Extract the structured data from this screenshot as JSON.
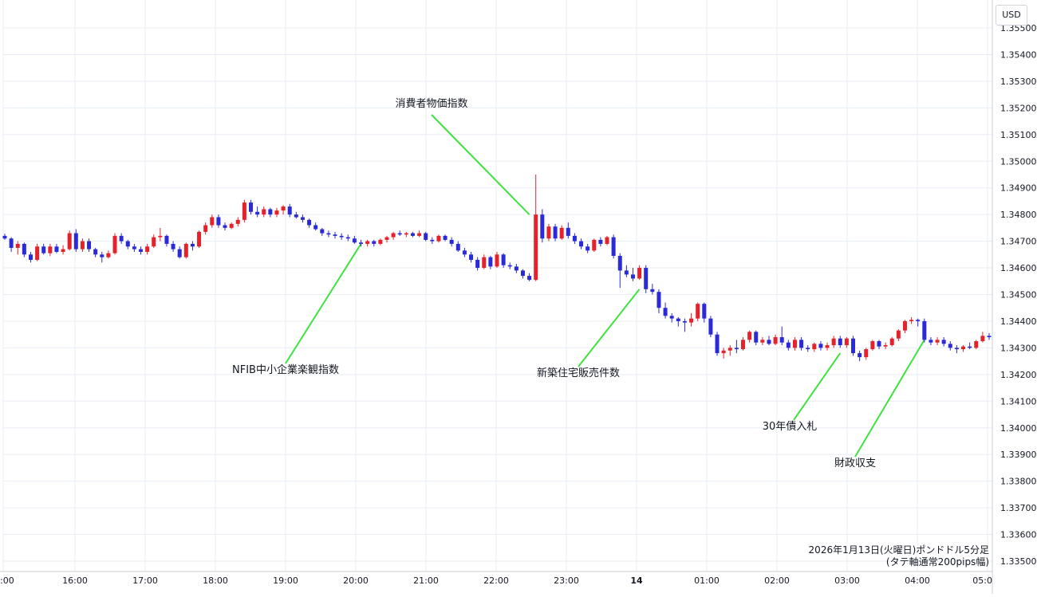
{
  "chart_data": {
    "type": "candlestick",
    "unit_label": "USD",
    "y_range": [
      1.335,
      1.3555
    ],
    "y_ticks": [
      "1.35500",
      "1.35400",
      "1.35300",
      "1.35200",
      "1.35100",
      "1.35000",
      "1.34900",
      "1.34800",
      "1.34700",
      "1.34600",
      "1.34500",
      "1.34400",
      "1.34300",
      "1.34200",
      "1.34100",
      "1.34000",
      "1.33900",
      "1.33800",
      "1.33700",
      "1.33600",
      "1.33500"
    ],
    "x_ticks": [
      ":00",
      "16:00",
      "17:00",
      "18:00",
      "19:00",
      "20:00",
      "21:00",
      "22:00",
      "23:00",
      "14",
      "01:00",
      "02:00",
      "03:00",
      "04:00",
      "05:0"
    ],
    "grid": true,
    "up_color": "#e5222b",
    "down_color": "#2a2ad8",
    "annotation_line_color": "#3fe23f",
    "caption_lines": [
      "2026年1月13日(火曜日)ポンドドル5分足",
      "(タテ軸通常200pips幅)"
    ],
    "annotations": [
      {
        "label": "消費者物価指数"
      },
      {
        "label": "NFIB中小企業楽観指数"
      },
      {
        "label": "新築住宅販売件数"
      },
      {
        "label": "30年債入札"
      },
      {
        "label": "財政収支"
      }
    ],
    "candles": [
      [
        1.3472,
        1.34728,
        1.34705,
        1.3471
      ],
      [
        1.3471,
        1.34715,
        1.3466,
        1.34675
      ],
      [
        1.34675,
        1.347,
        1.3465,
        1.3469
      ],
      [
        1.3469,
        1.34695,
        1.3464,
        1.3465
      ],
      [
        1.3465,
        1.3466,
        1.3462,
        1.3463
      ],
      [
        1.3463,
        1.3469,
        1.34625,
        1.3468
      ],
      [
        1.3468,
        1.3469,
        1.3465,
        1.34655
      ],
      [
        1.34655,
        1.3469,
        1.34645,
        1.3468
      ],
      [
        1.3468,
        1.3469,
        1.34655,
        1.3466
      ],
      [
        1.3466,
        1.34685,
        1.3465,
        1.3467
      ],
      [
        1.3467,
        1.3474,
        1.34665,
        1.3473
      ],
      [
        1.3473,
        1.34745,
        1.3466,
        1.3467
      ],
      [
        1.3467,
        1.3471,
        1.3466,
        1.347
      ],
      [
        1.347,
        1.3471,
        1.3466,
        1.3467
      ],
      [
        1.3467,
        1.34675,
        1.3464,
        1.3465
      ],
      [
        1.3465,
        1.3466,
        1.3462,
        1.3464
      ],
      [
        1.3464,
        1.34665,
        1.34635,
        1.34655
      ],
      [
        1.34655,
        1.3473,
        1.3465,
        1.3472
      ],
      [
        1.3472,
        1.3473,
        1.3469,
        1.347
      ],
      [
        1.347,
        1.34705,
        1.3467,
        1.3468
      ],
      [
        1.3468,
        1.3469,
        1.3466,
        1.3467
      ],
      [
        1.3467,
        1.3468,
        1.3465,
        1.3466
      ],
      [
        1.3466,
        1.3469,
        1.3465,
        1.3468
      ],
      [
        1.3468,
        1.34725,
        1.34675,
        1.34715
      ],
      [
        1.34715,
        1.3475,
        1.347,
        1.3472
      ],
      [
        1.3472,
        1.34725,
        1.3468,
        1.3469
      ],
      [
        1.3469,
        1.347,
        1.3466,
        1.3467
      ],
      [
        1.3467,
        1.3468,
        1.34635,
        1.3464
      ],
      [
        1.3464,
        1.34695,
        1.34635,
        1.3469
      ],
      [
        1.3469,
        1.347,
        1.34665,
        1.3468
      ],
      [
        1.3468,
        1.3474,
        1.34675,
        1.34735
      ],
      [
        1.34735,
        1.3477,
        1.34725,
        1.3476
      ],
      [
        1.3476,
        1.348,
        1.3475,
        1.3479
      ],
      [
        1.3479,
        1.348,
        1.3475,
        1.3476
      ],
      [
        1.3476,
        1.3477,
        1.3474,
        1.3475
      ],
      [
        1.3475,
        1.3477,
        1.34745,
        1.34765
      ],
      [
        1.34765,
        1.3479,
        1.34755,
        1.3478
      ],
      [
        1.3478,
        1.34855,
        1.3477,
        1.34845
      ],
      [
        1.34845,
        1.34855,
        1.348,
        1.3481
      ],
      [
        1.3481,
        1.3483,
        1.3479,
        1.348
      ],
      [
        1.348,
        1.3483,
        1.3479,
        1.3482
      ],
      [
        1.3482,
        1.34825,
        1.3479,
        1.348
      ],
      [
        1.348,
        1.34825,
        1.3479,
        1.34815
      ],
      [
        1.34815,
        1.34835,
        1.348,
        1.3483
      ],
      [
        1.3483,
        1.3484,
        1.3479,
        1.348
      ],
      [
        1.348,
        1.3481,
        1.34785,
        1.3479
      ],
      [
        1.3479,
        1.348,
        1.3477,
        1.3478
      ],
      [
        1.3478,
        1.34785,
        1.3475,
        1.3476
      ],
      [
        1.3476,
        1.3477,
        1.3474,
        1.34745
      ],
      [
        1.34745,
        1.3475,
        1.3472,
        1.3473
      ],
      [
        1.3473,
        1.3474,
        1.34715,
        1.34725
      ],
      [
        1.34725,
        1.34735,
        1.3471,
        1.3472
      ],
      [
        1.3472,
        1.3473,
        1.34705,
        1.34715
      ],
      [
        1.34715,
        1.34725,
        1.347,
        1.3471
      ],
      [
        1.3471,
        1.3472,
        1.3469,
        1.34695
      ],
      [
        1.34695,
        1.34705,
        1.3468,
        1.3469
      ],
      [
        1.3469,
        1.34705,
        1.3468,
        1.347
      ],
      [
        1.347,
        1.34705,
        1.3468,
        1.3469
      ],
      [
        1.3469,
        1.3471,
        1.34685,
        1.34705
      ],
      [
        1.34705,
        1.3472,
        1.34695,
        1.34715
      ],
      [
        1.34715,
        1.34735,
        1.34705,
        1.3473
      ],
      [
        1.3473,
        1.3474,
        1.3472,
        1.34725
      ],
      [
        1.34725,
        1.34735,
        1.34715,
        1.3473
      ],
      [
        1.3473,
        1.34735,
        1.34715,
        1.3472
      ],
      [
        1.3472,
        1.3474,
        1.34715,
        1.3473
      ],
      [
        1.3473,
        1.34735,
        1.347,
        1.34705
      ],
      [
        1.34705,
        1.34715,
        1.3469,
        1.347
      ],
      [
        1.347,
        1.34725,
        1.34695,
        1.3472
      ],
      [
        1.3472,
        1.34725,
        1.347,
        1.34705
      ],
      [
        1.34705,
        1.34715,
        1.3468,
        1.3469
      ],
      [
        1.3469,
        1.347,
        1.3466,
        1.34665
      ],
      [
        1.34665,
        1.34675,
        1.3464,
        1.3465
      ],
      [
        1.3465,
        1.3466,
        1.3462,
        1.3463
      ],
      [
        1.3463,
        1.3464,
        1.3459,
        1.346
      ],
      [
        1.346,
        1.3465,
        1.34595,
        1.3464
      ],
      [
        1.3464,
        1.34645,
        1.34595,
        1.34605
      ],
      [
        1.34605,
        1.3466,
        1.346,
        1.3465
      ],
      [
        1.3465,
        1.34655,
        1.346,
        1.3461
      ],
      [
        1.3461,
        1.3462,
        1.34595,
        1.34605
      ],
      [
        1.34605,
        1.34615,
        1.3458,
        1.3459
      ],
      [
        1.3459,
        1.34595,
        1.3456,
        1.3457
      ],
      [
        1.3457,
        1.3458,
        1.3455,
        1.34555
      ],
      [
        1.34555,
        1.3495,
        1.3455,
        1.348
      ],
      [
        1.348,
        1.3482,
        1.34695,
        1.3471
      ],
      [
        1.3471,
        1.34765,
        1.347,
        1.34755
      ],
      [
        1.34755,
        1.34765,
        1.347,
        1.3471
      ],
      [
        1.3471,
        1.3476,
        1.34705,
        1.3475
      ],
      [
        1.3475,
        1.3477,
        1.3471,
        1.3472
      ],
      [
        1.3472,
        1.3473,
        1.3469,
        1.347
      ],
      [
        1.347,
        1.3471,
        1.3467,
        1.3468
      ],
      [
        1.3468,
        1.3469,
        1.34655,
        1.34665
      ],
      [
        1.34665,
        1.3471,
        1.3466,
        1.34705
      ],
      [
        1.34705,
        1.34715,
        1.3468,
        1.3469
      ],
      [
        1.3469,
        1.3472,
        1.34685,
        1.34715
      ],
      [
        1.34715,
        1.34725,
        1.34635,
        1.34645
      ],
      [
        1.34645,
        1.34655,
        1.34525,
        1.3459
      ],
      [
        1.3459,
        1.3461,
        1.34565,
        1.34575
      ],
      [
        1.34575,
        1.346,
        1.3455,
        1.3456
      ],
      [
        1.3456,
        1.3461,
        1.34555,
        1.346
      ],
      [
        1.346,
        1.3461,
        1.34505,
        1.3452
      ],
      [
        1.3452,
        1.3454,
        1.345,
        1.3451
      ],
      [
        1.3451,
        1.3452,
        1.3443,
        1.3445
      ],
      [
        1.3445,
        1.3447,
        1.3441,
        1.3442
      ],
      [
        1.3442,
        1.3443,
        1.34395,
        1.3441
      ],
      [
        1.3441,
        1.34415,
        1.3438,
        1.344
      ],
      [
        1.344,
        1.3441,
        1.3436,
        1.34395
      ],
      [
        1.34395,
        1.3443,
        1.3438,
        1.3441
      ],
      [
        1.3441,
        1.3447,
        1.344,
        1.34465
      ],
      [
        1.34465,
        1.3447,
        1.34395,
        1.3441
      ],
      [
        1.3441,
        1.3442,
        1.3434,
        1.3435
      ],
      [
        1.3435,
        1.3436,
        1.3427,
        1.3428
      ],
      [
        1.3428,
        1.343,
        1.3426,
        1.3429
      ],
      [
        1.3429,
        1.3431,
        1.3427,
        1.343
      ],
      [
        1.343,
        1.3433,
        1.3428,
        1.34295
      ],
      [
        1.34295,
        1.3434,
        1.3429,
        1.3433
      ],
      [
        1.3433,
        1.34365,
        1.3432,
        1.3436
      ],
      [
        1.3436,
        1.34365,
        1.3431,
        1.3432
      ],
      [
        1.3432,
        1.3434,
        1.3431,
        1.3433
      ],
      [
        1.3433,
        1.34345,
        1.3431,
        1.34315
      ],
      [
        1.34315,
        1.3435,
        1.3431,
        1.3434
      ],
      [
        1.3434,
        1.3438,
        1.3431,
        1.3432
      ],
      [
        1.3432,
        1.3433,
        1.3429,
        1.343
      ],
      [
        1.343,
        1.3434,
        1.3429,
        1.3433
      ],
      [
        1.3433,
        1.3434,
        1.3429,
        1.343
      ],
      [
        1.343,
        1.3431,
        1.34285,
        1.34295
      ],
      [
        1.34295,
        1.3432,
        1.34285,
        1.34315
      ],
      [
        1.34315,
        1.34325,
        1.3429,
        1.343
      ],
      [
        1.343,
        1.3432,
        1.3429,
        1.3431
      ],
      [
        1.3431,
        1.34345,
        1.343,
        1.34335
      ],
      [
        1.34335,
        1.34345,
        1.343,
        1.3431
      ],
      [
        1.3431,
        1.3434,
        1.343,
        1.34335
      ],
      [
        1.34335,
        1.34345,
        1.3427,
        1.3428
      ],
      [
        1.3428,
        1.3429,
        1.3425,
        1.34265
      ],
      [
        1.34265,
        1.343,
        1.34255,
        1.34295
      ],
      [
        1.34295,
        1.3433,
        1.3429,
        1.34325
      ],
      [
        1.34325,
        1.3433,
        1.34295,
        1.34305
      ],
      [
        1.34305,
        1.3432,
        1.34295,
        1.3431
      ],
      [
        1.3431,
        1.3434,
        1.34305,
        1.34335
      ],
      [
        1.34335,
        1.3437,
        1.34325,
        1.34365
      ],
      [
        1.34365,
        1.34405,
        1.34355,
        1.344
      ],
      [
        1.344,
        1.34415,
        1.3439,
        1.34405
      ],
      [
        1.34405,
        1.3441,
        1.3438,
        1.344
      ],
      [
        1.344,
        1.3441,
        1.3432,
        1.3433
      ],
      [
        1.3433,
        1.3434,
        1.3431,
        1.3432
      ],
      [
        1.3432,
        1.3434,
        1.3431,
        1.3433
      ],
      [
        1.3433,
        1.3434,
        1.34305,
        1.34315
      ],
      [
        1.34315,
        1.34325,
        1.3429,
        1.343
      ],
      [
        1.343,
        1.3431,
        1.3428,
        1.34295
      ],
      [
        1.34295,
        1.3431,
        1.34285,
        1.34305
      ],
      [
        1.34305,
        1.3432,
        1.34295,
        1.343
      ],
      [
        1.343,
        1.3433,
        1.34295,
        1.34325
      ],
      [
        1.34325,
        1.3436,
        1.3432,
        1.34345
      ],
      [
        1.34345,
        1.34355,
        1.3433,
        1.3434
      ]
    ]
  }
}
